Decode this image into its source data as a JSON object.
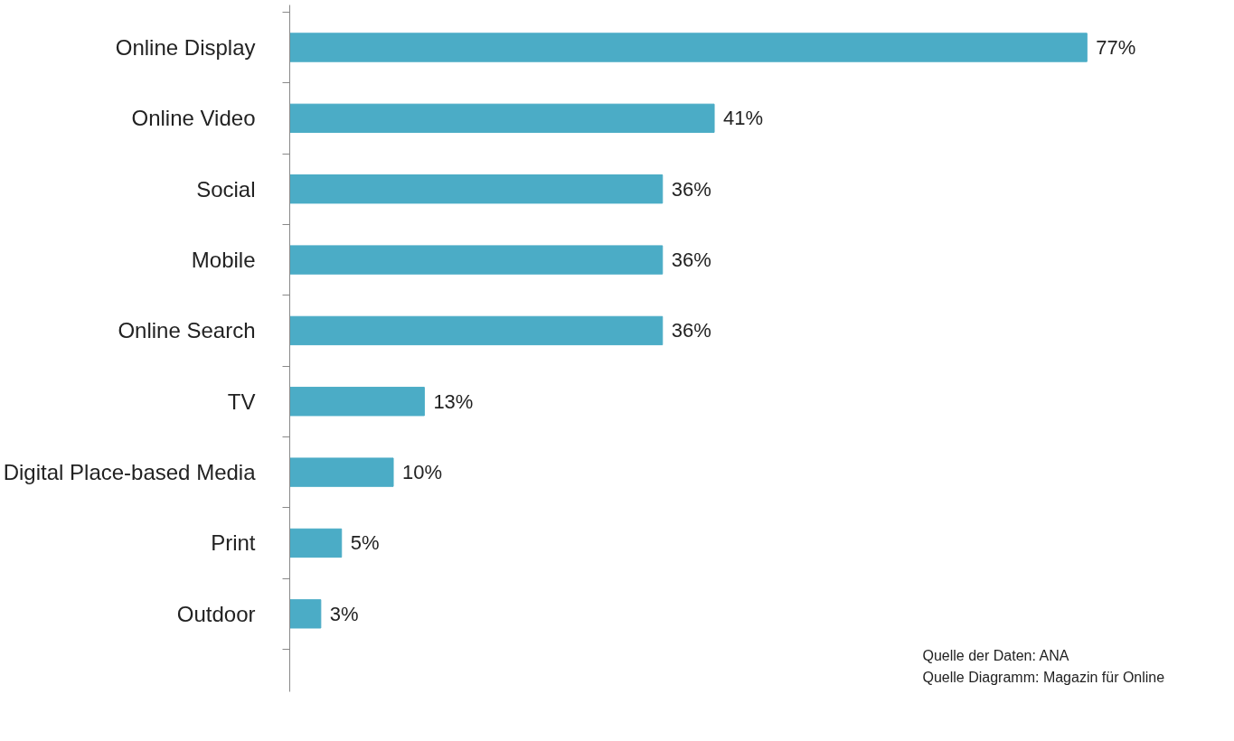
{
  "chart_data": {
    "type": "bar",
    "orientation": "horizontal",
    "categories": [
      "Online Display",
      "Online Video",
      "Social",
      "Mobile",
      "Online Search",
      "TV",
      "Digital Place-based Media",
      "Print",
      "Outdoor"
    ],
    "values": [
      77,
      41,
      36,
      36,
      36,
      13,
      10,
      5,
      3
    ],
    "value_labels": [
      "77%",
      "41%",
      "36%",
      "36%",
      "36%",
      "13%",
      "10%",
      "5%",
      "3%"
    ],
    "color": "#4bacc6",
    "annotations": [
      "Quelle der Daten: ANA",
      "Quelle Diagramm: Magazin für Online"
    ]
  }
}
